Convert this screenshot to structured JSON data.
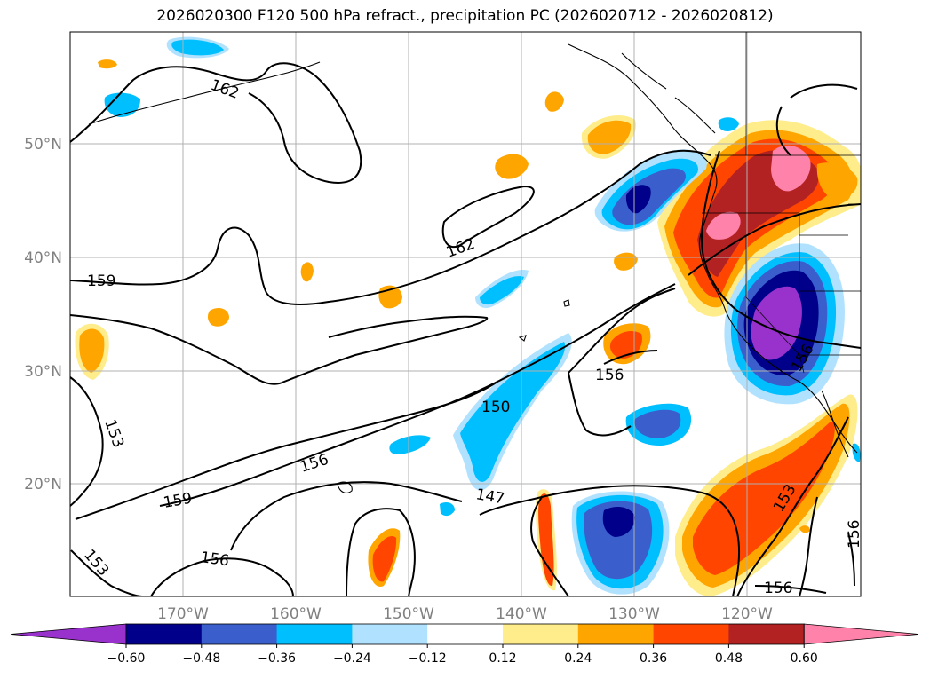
{
  "title": "2026020300 F120 500 hPa refract., precipitation PC (2026020712 - 2026020812)",
  "lat_labels": [
    "50°N",
    "40°N",
    "30°N",
    "20°N"
  ],
  "lon_labels": [
    "170°W",
    "160°W",
    "150°W",
    "140°W",
    "130°W",
    "120°W"
  ],
  "colorbar": {
    "levels": [
      "−0.60",
      "−0.48",
      "−0.36",
      "−0.24",
      "−0.12",
      "0.12",
      "0.24",
      "0.36",
      "0.48",
      "0.60"
    ],
    "colors": [
      "#9932cc",
      "#00008b",
      "#3a5fcd",
      "#00bfff",
      "#b0e2ff",
      "#ffffff",
      "#ffec8b",
      "#ffa500",
      "#ff4500",
      "#b22222",
      "#ff82ab"
    ]
  },
  "contour_labels": [
    "162",
    "162",
    "159",
    "159",
    "156",
    "156",
    "156",
    "156",
    "156",
    "156",
    "153",
    "153",
    "153",
    "150",
    "147"
  ],
  "map": {
    "lon_range": [
      -180,
      -110
    ],
    "lat_range": [
      10,
      60
    ],
    "variable_fill": "precipitation PC",
    "variable_contour": "500 hPa refract."
  }
}
